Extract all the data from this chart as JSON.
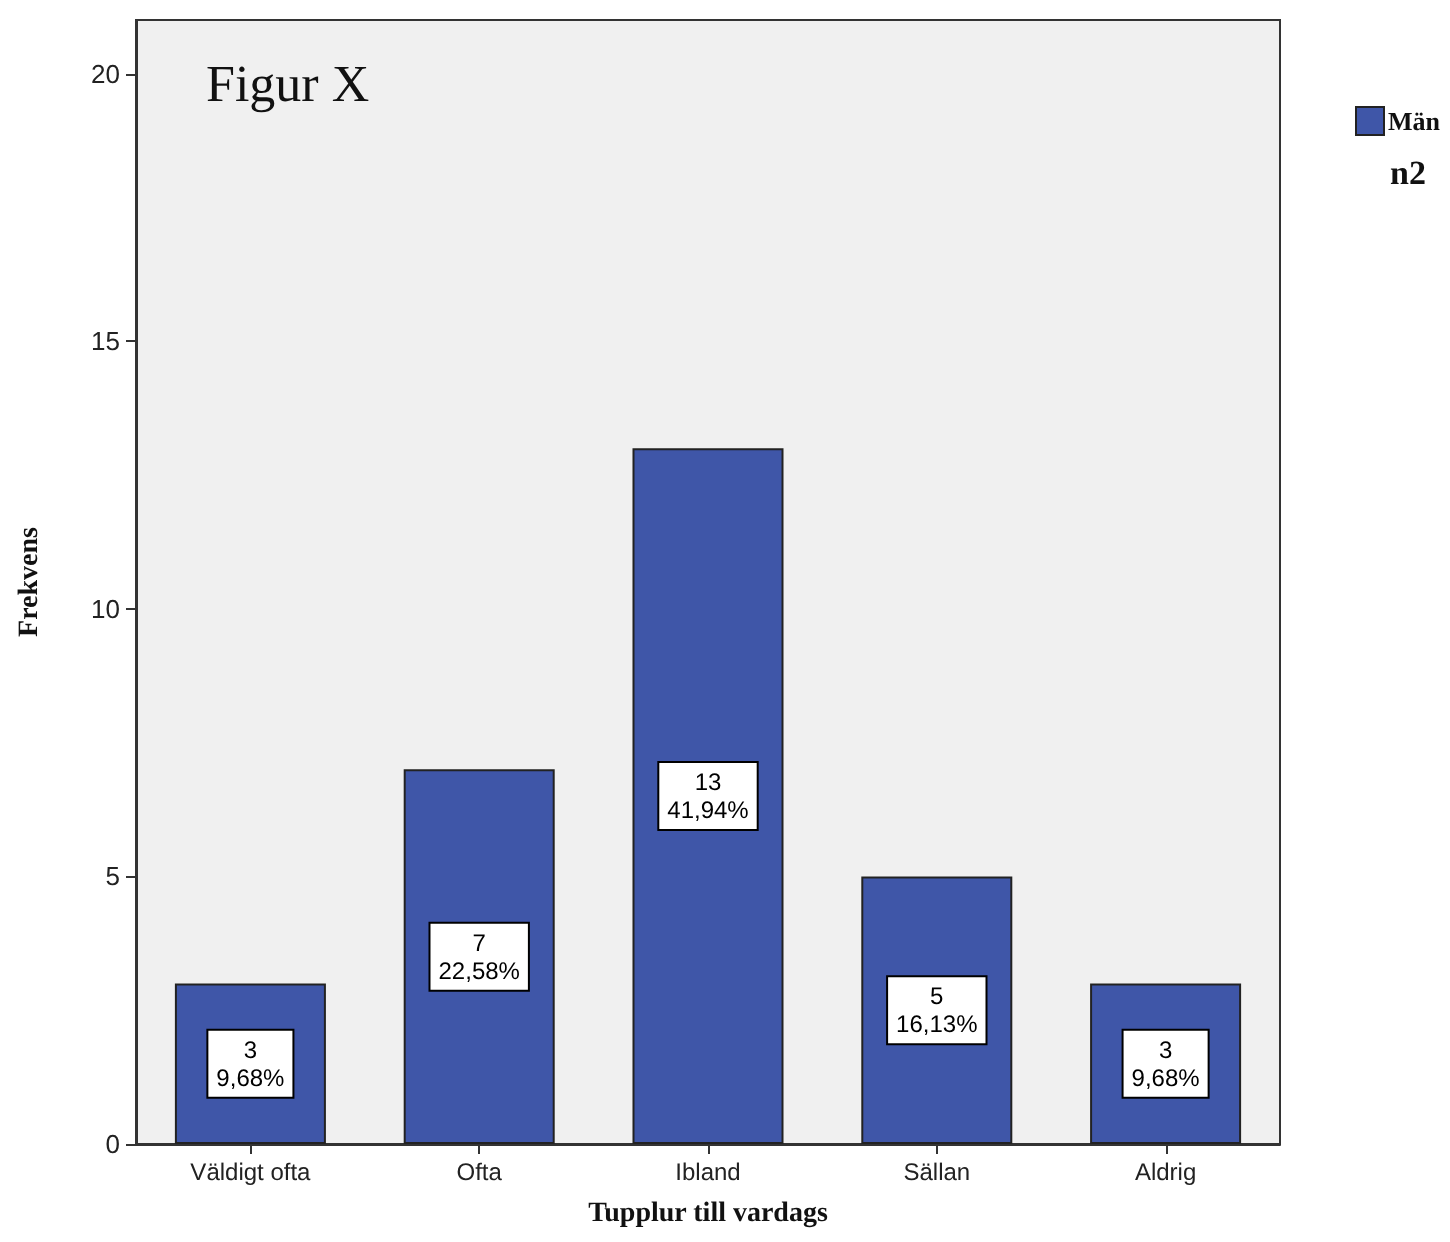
{
  "chart_data": {
    "type": "bar",
    "title": "Figur X",
    "xlabel": "Tupplur till vardags",
    "ylabel": "Frekvens",
    "legend_title": "n2",
    "categories": [
      "Väldigt ofta",
      "Ofta",
      "Ibland",
      "Sällan",
      "Aldrig"
    ],
    "series": [
      {
        "name": "Män",
        "color": "#3f56a8",
        "values": [
          3,
          7,
          13,
          5,
          3
        ],
        "value_labels": [
          "3\n9,68%",
          "7\n22,58%",
          "13\n41,94%",
          "5\n16,13%",
          "3\n9,68%"
        ]
      }
    ],
    "ylim": [
      0,
      21
    ],
    "yticks": [
      0,
      5,
      10,
      15,
      20
    ],
    "grid": false,
    "legend": "top right"
  }
}
